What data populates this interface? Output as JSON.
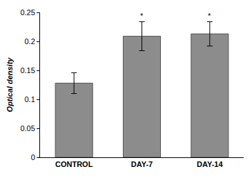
{
  "chart_data": {
    "type": "bar",
    "y_label": "Optical density",
    "categories": [
      "CONTROL",
      "DAY-7",
      "DAY-14"
    ],
    "values": [
      0.128,
      0.209,
      0.213
    ],
    "errors": [
      0.018,
      0.025,
      0.021
    ],
    "color": "#8c8c8c",
    "ylim": [
      0,
      0.25
    ],
    "yticks": [
      0,
      0.05,
      0.1,
      0.15,
      0.2,
      0.25
    ],
    "grid": false,
    "annotations": [
      {
        "category": "DAY-7",
        "text": "*"
      },
      {
        "category": "DAY-14",
        "text": "*"
      }
    ]
  }
}
